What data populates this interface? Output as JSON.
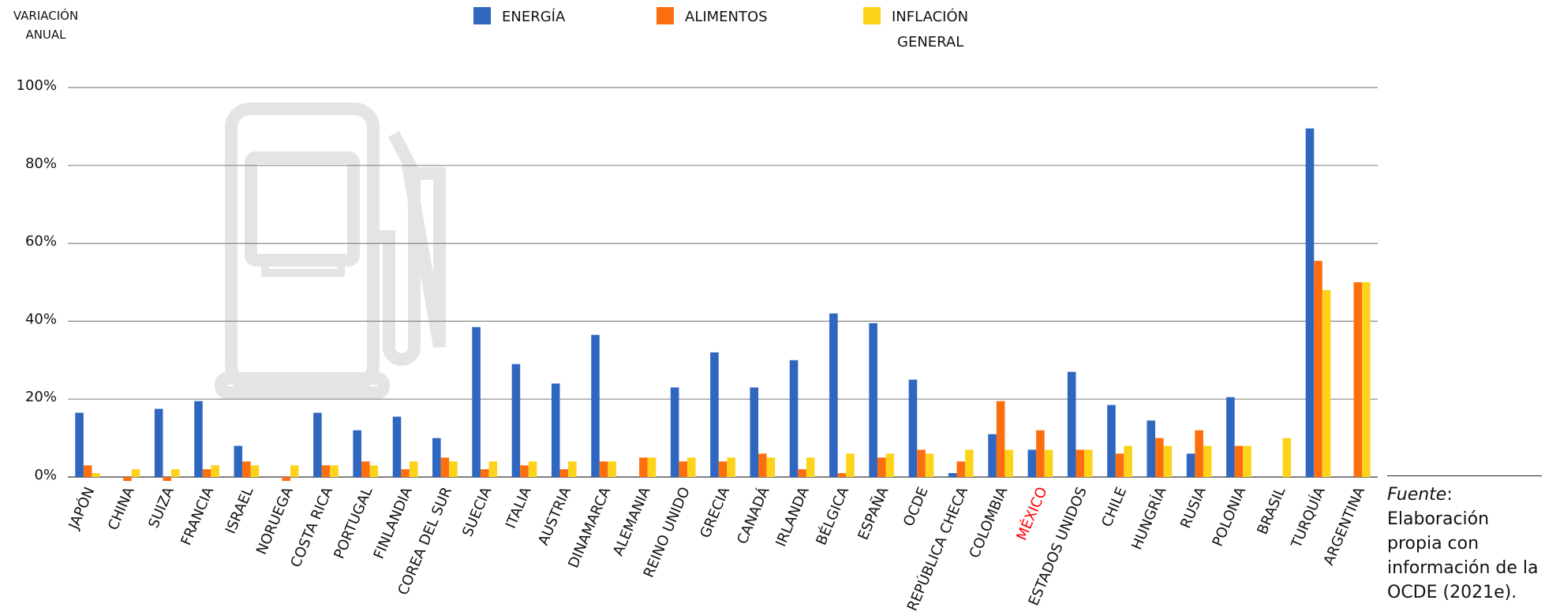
{
  "chart_data": {
    "type": "bar",
    "y_axis_label": "VARIACIÓN ANUAL",
    "categories": [
      "JAPÓN",
      "CHINA",
      "SUIZA",
      "FRANCIA",
      "ISRAEL",
      "NORUEGA",
      "COSTA RICA",
      "PORTUGAL",
      "FINLANDIA",
      "COREA DEL SUR",
      "SUECIA",
      "ITALIA",
      "AUSTRIA",
      "DINAMARCA",
      "ALEMANIA",
      "REINO UNIDO",
      "GRECIA",
      "CANADÁ",
      "IRLANDA",
      "BÉLGICA",
      "ESPAÑA",
      "OCDE",
      "REPÚBLICA CHECA",
      "COLOMBIA",
      "MÉXICO",
      "ESTADOS UNIDOS",
      "CHILE",
      "HUNGRÍA",
      "RUSIA",
      "POLONIA",
      "BRASIL",
      "TURQUÍA",
      "ARGENTINA"
    ],
    "series": [
      {
        "name": "ENERGÍA",
        "color": "#2f66c0",
        "values": [
          16.5,
          null,
          17.5,
          19.5,
          8,
          null,
          16.5,
          12,
          15.5,
          10,
          38.5,
          29,
          24,
          36.5,
          null,
          23,
          32,
          23,
          30,
          42,
          39.5,
          25,
          1,
          11,
          7,
          27,
          18.5,
          14.5,
          6,
          20.5,
          null,
          89.5,
          null
        ]
      },
      {
        "name": "ALIMENTOS",
        "color": "#fd6e0f",
        "values": [
          3,
          -1,
          -1,
          2,
          4,
          -1,
          3,
          4,
          2,
          5,
          2,
          3,
          2,
          4,
          5,
          4,
          4,
          6,
          2,
          1,
          5,
          7,
          4,
          19.5,
          12,
          7,
          6,
          10,
          12,
          8,
          null,
          55.5,
          50
        ]
      },
      {
        "name": "INFLACIÓN GENERAL",
        "color": "#fcd31a",
        "values": [
          1,
          2,
          2,
          3,
          3,
          3,
          3,
          3,
          4,
          4,
          4,
          4,
          4,
          4,
          5,
          5,
          5,
          5,
          5,
          6,
          6,
          6,
          7,
          7,
          7,
          7,
          8,
          8,
          8,
          8,
          10,
          48,
          50
        ]
      }
    ],
    "ylim": [
      0,
      100
    ],
    "yticks": [
      {
        "value": 0,
        "label": "0%"
      },
      {
        "value": 20,
        "label": "20%"
      },
      {
        "value": 40,
        "label": "40%"
      },
      {
        "value": 60,
        "label": "60%"
      },
      {
        "value": 80,
        "label": "80%"
      },
      {
        "value": 100,
        "label": "100%"
      }
    ],
    "grid": true,
    "highlight_category_index": 24,
    "highlight_color": "#ff0000",
    "source": {
      "label": "Fuente",
      "text": ": Elaboración propia con información de la OCDE (2021e)."
    }
  }
}
